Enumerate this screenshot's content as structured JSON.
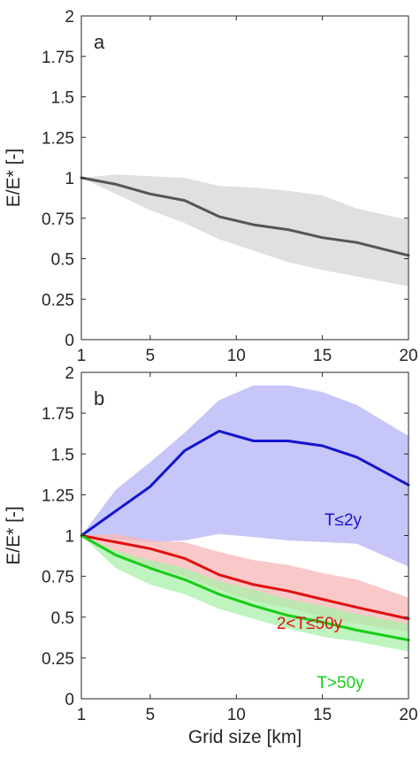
{
  "chart_data": [
    {
      "type": "line",
      "panel_label": "a",
      "xlabel": "",
      "ylabel": "E/E* [-]",
      "xlim": [
        1,
        20
      ],
      "ylim": [
        0,
        2
      ],
      "xticks": [
        1,
        5,
        10,
        15,
        20
      ],
      "yticks": [
        0,
        0.25,
        0.5,
        0.75,
        1,
        1.25,
        1.5,
        1.75,
        2
      ],
      "ytick_labels": [
        "0",
        "0.25",
        "0.5",
        "0.75",
        "1",
        "1.25",
        "1.5",
        "1.75",
        "2"
      ],
      "grid": false,
      "x": [
        1,
        3,
        5,
        7,
        9,
        11,
        13,
        15,
        17,
        20
      ],
      "series": [
        {
          "name": "",
          "color": "#555555",
          "band_color": "#d6d6d6",
          "values": [
            1.0,
            0.96,
            0.9,
            0.86,
            0.76,
            0.71,
            0.68,
            0.63,
            0.6,
            0.52
          ],
          "upper": [
            1.0,
            1.02,
            1.01,
            1.0,
            0.95,
            0.94,
            0.92,
            0.89,
            0.81,
            0.74
          ],
          "lower": [
            1.0,
            0.9,
            0.8,
            0.72,
            0.62,
            0.55,
            0.48,
            0.43,
            0.39,
            0.33
          ]
        }
      ]
    },
    {
      "type": "line",
      "panel_label": "b",
      "xlabel": "Grid size [km]",
      "ylabel": "E/E* [-]",
      "xlim": [
        1,
        20
      ],
      "ylim": [
        0,
        2
      ],
      "xticks": [
        1,
        5,
        10,
        15,
        20
      ],
      "yticks": [
        0,
        0.25,
        0.5,
        0.75,
        1,
        1.25,
        1.5,
        1.75,
        2
      ],
      "ytick_labels": [
        "0",
        "0.25",
        "0.5",
        "0.75",
        "1",
        "1.25",
        "1.5",
        "1.75",
        "2"
      ],
      "grid": false,
      "x": [
        1,
        3,
        5,
        7,
        9,
        11,
        13,
        15,
        17,
        20
      ],
      "series": [
        {
          "name": "T≤2y",
          "color": "#1515cc",
          "band_color": "#b3b3f5",
          "values": [
            1.0,
            1.15,
            1.3,
            1.52,
            1.64,
            1.58,
            1.58,
            1.55,
            1.48,
            1.31
          ],
          "upper": [
            1.0,
            1.28,
            1.45,
            1.63,
            1.83,
            1.92,
            1.92,
            1.88,
            1.8,
            1.61
          ],
          "lower": [
            1.0,
            0.98,
            0.96,
            0.97,
            1.01,
            0.99,
            0.97,
            0.96,
            0.95,
            0.81
          ]
        },
        {
          "name": "2<T≤50y",
          "color": "#e01010",
          "band_color": "#f7b5b5",
          "values": [
            1.0,
            0.96,
            0.92,
            0.86,
            0.76,
            0.7,
            0.66,
            0.61,
            0.56,
            0.49
          ],
          "upper": [
            1.0,
            1.01,
            0.97,
            0.96,
            0.9,
            0.85,
            0.82,
            0.77,
            0.73,
            0.62
          ],
          "lower": [
            1.0,
            0.88,
            0.81,
            0.75,
            0.67,
            0.6,
            0.56,
            0.5,
            0.46,
            0.41
          ]
        },
        {
          "name": "T>50y",
          "color": "#18cc18",
          "band_color": "#a8f0a8",
          "values": [
            1.0,
            0.88,
            0.8,
            0.73,
            0.64,
            0.57,
            0.51,
            0.47,
            0.42,
            0.36
          ],
          "upper": [
            1.0,
            0.91,
            0.85,
            0.8,
            0.72,
            0.67,
            0.61,
            0.57,
            0.52,
            0.46
          ],
          "lower": [
            1.0,
            0.8,
            0.7,
            0.64,
            0.55,
            0.49,
            0.43,
            0.38,
            0.35,
            0.29
          ]
        }
      ]
    }
  ]
}
